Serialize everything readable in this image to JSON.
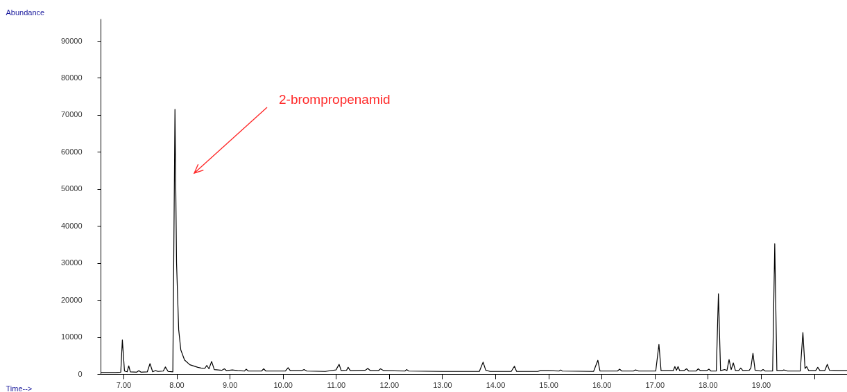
{
  "chart_data": {
    "type": "line",
    "xlabel": "Time-->",
    "ylabel": "Abundance",
    "xlim": [
      6.57,
      20.62
    ],
    "ylim": [
      0,
      96000
    ],
    "xticks": [
      {
        "value": 7,
        "label": "7.00"
      },
      {
        "value": 8,
        "label": "8.00"
      },
      {
        "value": 9,
        "label": "9.00"
      },
      {
        "value": 10,
        "label": "10.00"
      },
      {
        "value": 11,
        "label": "11.00"
      },
      {
        "value": 12,
        "label": "12.00"
      },
      {
        "value": 13,
        "label": "13.00"
      },
      {
        "value": 14,
        "label": "14.00"
      },
      {
        "value": 15,
        "label": "15.00"
      },
      {
        "value": 16,
        "label": "16.00"
      },
      {
        "value": 17,
        "label": "17.00"
      },
      {
        "value": 18,
        "label": "18.00"
      },
      {
        "value": 19,
        "label": "19.00"
      },
      {
        "value": 20,
        "label": null
      }
    ],
    "yticks": [
      0,
      10000,
      20000,
      30000,
      40000,
      50000,
      60000,
      70000,
      80000,
      90000
    ],
    "annotations": [
      "2-brompropenamid"
    ],
    "series": [
      {
        "color": "#000000",
        "x": [
          6.57,
          6.7,
          6.85,
          6.95,
          6.98,
          7.02,
          7.07,
          7.1,
          7.13,
          7.25,
          7.29,
          7.33,
          7.45,
          7.5,
          7.55,
          7.6,
          7.65,
          7.75,
          7.79,
          7.84,
          7.93,
          7.97,
          8.0,
          8.04,
          8.08,
          8.15,
          8.25,
          8.4,
          8.46,
          8.53,
          8.57,
          8.61,
          8.66,
          8.71,
          8.85,
          8.9,
          8.94,
          9.05,
          9.15,
          9.28,
          9.31,
          9.35,
          9.6,
          9.64,
          9.68,
          10.05,
          10.1,
          10.14,
          10.35,
          10.4,
          10.45,
          10.8,
          11.0,
          11.06,
          11.1,
          11.2,
          11.23,
          11.27,
          11.55,
          11.6,
          11.65,
          11.8,
          11.84,
          11.9,
          12.3,
          12.33,
          12.37,
          13.0,
          13.7,
          13.77,
          13.82,
          13.9,
          14.3,
          14.36,
          14.4,
          14.8,
          14.85,
          15.0,
          15.2,
          15.23,
          15.26,
          15.85,
          15.93,
          15.97,
          16.3,
          16.34,
          16.38,
          16.6,
          16.64,
          16.7,
          17.02,
          17.08,
          17.12,
          17.2,
          17.35,
          17.38,
          17.41,
          17.44,
          17.47,
          17.55,
          17.6,
          17.64,
          17.78,
          17.82,
          17.86,
          17.98,
          18.02,
          18.06,
          18.16,
          18.2,
          18.24,
          18.32,
          18.36,
          18.4,
          18.44,
          18.48,
          18.52,
          18.58,
          18.62,
          18.66,
          18.78,
          18.81,
          18.85,
          18.89,
          19.0,
          19.04,
          19.08,
          19.22,
          19.26,
          19.3,
          19.4,
          19.43,
          19.5,
          19.74,
          19.79,
          19.83,
          19.86,
          19.9,
          20.03,
          20.07,
          20.11,
          20.2,
          20.25,
          20.29,
          20.45,
          20.62
        ],
        "values": [
          400,
          400,
          400,
          500,
          9200,
          800,
          600,
          2200,
          600,
          500,
          900,
          500,
          600,
          2800,
          600,
          900,
          700,
          800,
          1900,
          700,
          600,
          71500,
          30000,
          12000,
          6500,
          3800,
          2500,
          1800,
          1600,
          1500,
          2300,
          1400,
          3400,
          1200,
          1000,
          1400,
          900,
          1100,
          900,
          800,
          1300,
          800,
          800,
          1400,
          800,
          800,
          1700,
          900,
          900,
          1200,
          800,
          700,
          1100,
          2600,
          900,
          1000,
          1800,
          900,
          1000,
          1500,
          900,
          900,
          1400,
          900,
          800,
          1200,
          800,
          700,
          700,
          3200,
          1000,
          700,
          700,
          2100,
          700,
          700,
          900,
          900,
          800,
          1100,
          800,
          700,
          3700,
          800,
          800,
          1300,
          800,
          800,
          1100,
          800,
          800,
          8000,
          900,
          900,
          900,
          2000,
          1000,
          2000,
          900,
          900,
          1400,
          800,
          800,
          1400,
          900,
          900,
          1300,
          800,
          800,
          21700,
          900,
          1200,
          900,
          3900,
          1200,
          3000,
          900,
          900,
          1600,
          900,
          1000,
          1600,
          5600,
          1000,
          800,
          1200,
          800,
          800,
          35200,
          900,
          900,
          1100,
          800,
          800,
          11200,
          1500,
          2000,
          900,
          900,
          1800,
          900,
          900,
          2600,
          1000,
          900,
          900
        ]
      }
    ]
  }
}
